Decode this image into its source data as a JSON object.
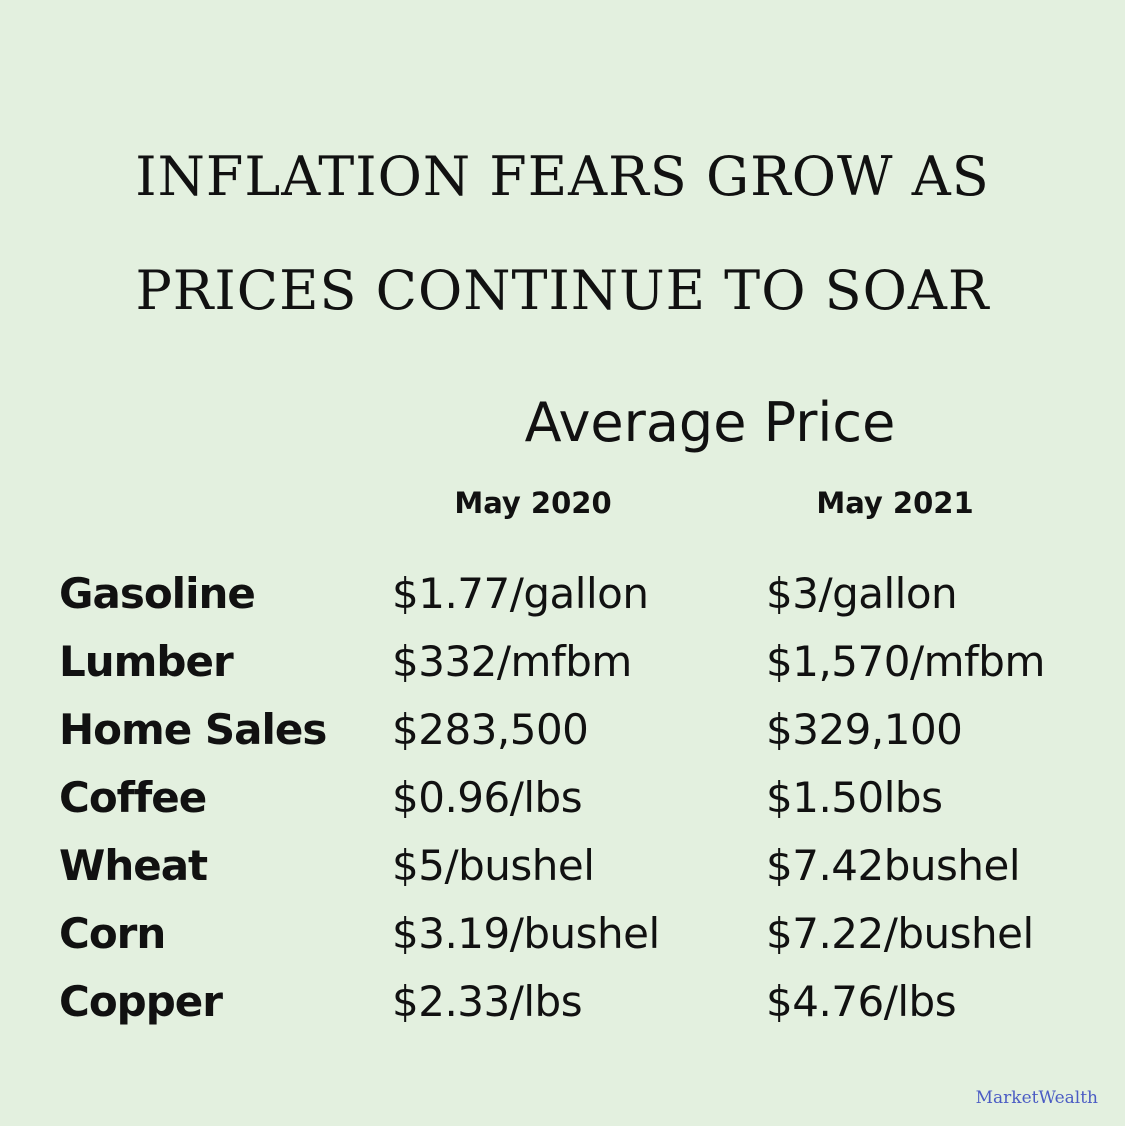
{
  "headline": {
    "line1": "INFLATION FEARS GROW AS",
    "line2": "PRICES CONTINUE TO SOAR"
  },
  "table": {
    "group_header": "Average Price",
    "columns": [
      "May 2020",
      "May 2021"
    ],
    "rows": [
      {
        "item": "Gasoline",
        "may_2020": "$1.77/gallon",
        "may_2021": "$3/gallon"
      },
      {
        "item": "Lumber",
        "may_2020": "$332/mfbm",
        "may_2021": "$1,570/mfbm"
      },
      {
        "item": "Home Sales",
        "may_2020": "$283,500",
        "may_2021": "$329,100"
      },
      {
        "item": "Coffee",
        "may_2020": "$0.96/lbs",
        "may_2021": "$1.50lbs"
      },
      {
        "item": "Wheat",
        "may_2020": "$5/bushel",
        "may_2021": "$7.42bushel"
      },
      {
        "item": "Corn",
        "may_2020": "$3.19/bushel",
        "may_2021": "$7.22/bushel"
      },
      {
        "item": "Copper",
        "may_2020": "$2.33/lbs",
        "may_2021": "$4.76/lbs"
      }
    ]
  },
  "source": "MarketWealth",
  "colors": {
    "background": "#e3f0df",
    "text": "#111111",
    "source_text": "#4b5cc4"
  }
}
